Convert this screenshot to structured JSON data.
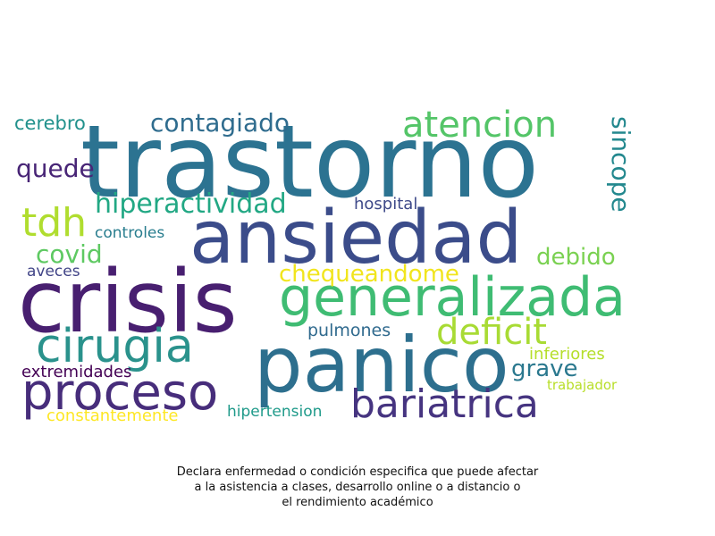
{
  "words": [
    {
      "text": "trastorno",
      "color": "#2c7391"
    },
    {
      "text": "ansiedad",
      "color": "#3b4c8a"
    },
    {
      "text": "crisis",
      "color": "#481f70"
    },
    {
      "text": "panico",
      "color": "#2d6f8e"
    },
    {
      "text": "generalizada",
      "color": "#3fbc73"
    },
    {
      "text": "cirugia",
      "color": "#2a928c"
    },
    {
      "text": "proceso",
      "color": "#472d7b"
    },
    {
      "text": "bariatrica",
      "color": "#463480"
    },
    {
      "text": "atencion",
      "color": "#54c568"
    },
    {
      "text": "deficit",
      "color": "#a8db34"
    },
    {
      "text": "contagiado",
      "color": "#2f6c8e"
    },
    {
      "text": "tdh",
      "color": "#b0dd2f"
    },
    {
      "text": "hiperactividad",
      "color": "#22a884"
    },
    {
      "text": "sincope",
      "color": "#23888e"
    },
    {
      "text": "quede",
      "color": "#482576"
    },
    {
      "text": "covid",
      "color": "#5ec962"
    },
    {
      "text": "chequeandome",
      "color": "#f1e51d"
    },
    {
      "text": "debido",
      "color": "#7ad151"
    },
    {
      "text": "grave",
      "color": "#2a788e"
    },
    {
      "text": "cerebro",
      "color": "#21918c"
    },
    {
      "text": "hospital",
      "color": "#3e4989"
    },
    {
      "text": "controles",
      "color": "#287d8e"
    },
    {
      "text": "aveces",
      "color": "#414487"
    },
    {
      "text": "pulmones",
      "color": "#306a8e"
    },
    {
      "text": "inferiores",
      "color": "#b5de2b"
    },
    {
      "text": "extremidades",
      "color": "#440154"
    },
    {
      "text": "trabajador",
      "color": "#b8de29"
    },
    {
      "text": "constantemente",
      "color": "#fde725"
    },
    {
      "text": "hipertension",
      "color": "#1f9a8a"
    }
  ],
  "caption": [
    "Declara enfermedad o condición especifica que puede afectar",
    "a la asistencia a clases, desarrollo online o a distancio o",
    "el rendimiento académico"
  ]
}
